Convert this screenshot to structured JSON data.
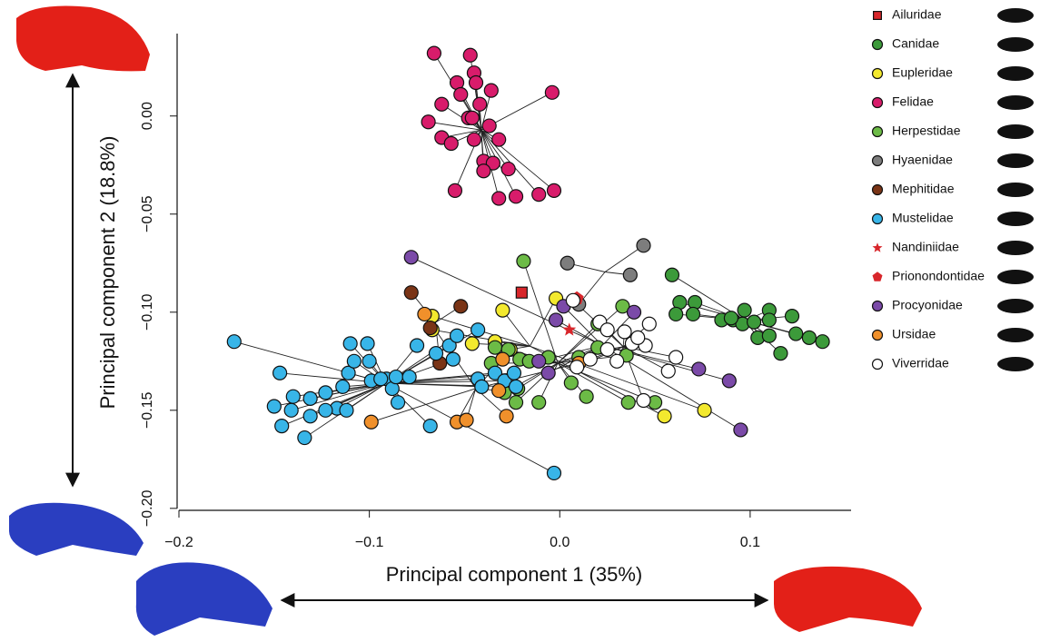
{
  "chart_data": {
    "type": "scatter",
    "xlabel": "Principal component 1 (35%)",
    "ylabel": "Principal component 2 (18.8%)",
    "xlim": [
      -0.2,
      0.153
    ],
    "ylim": [
      -0.201,
      0.042
    ],
    "xticks": [
      {
        "value": -0.2,
        "label": "−0.2"
      },
      {
        "value": -0.1,
        "label": "−0.1"
      },
      {
        "value": 0,
        "label": "0.0"
      },
      {
        "value": 0.1,
        "label": "0.1"
      }
    ],
    "yticks": [
      {
        "value": 0,
        "label": "0.00"
      },
      {
        "value": -0.05,
        "label": "−0.05"
      },
      {
        "value": -0.1,
        "label": "−0.10"
      },
      {
        "value": -0.15,
        "label": "−0.15"
      },
      {
        "value": -0.2,
        "label": "−0.20"
      }
    ],
    "legend": "right",
    "series": [
      {
        "name": "Ailuridae",
        "color": "#d8262b",
        "marker": "square",
        "x": [
          -0.02
        ],
        "y": [
          -0.09
        ]
      },
      {
        "name": "Canidae",
        "color": "#3c9a3a",
        "marker": "circle",
        "x": [
          0.059,
          0.063,
          0.071,
          0.061,
          0.07,
          0.085,
          0.097,
          0.091,
          0.11,
          0.122,
          0.096,
          0.102,
          0.09,
          0.11,
          0.104,
          0.11,
          0.124,
          0.131,
          0.138,
          0.116
        ],
        "y": [
          -0.081,
          -0.095,
          -0.095,
          -0.101,
          -0.101,
          -0.104,
          -0.099,
          -0.104,
          -0.099,
          -0.102,
          -0.106,
          -0.105,
          -0.103,
          -0.104,
          -0.113,
          -0.112,
          -0.111,
          -0.113,
          -0.115,
          -0.121
        ]
      },
      {
        "name": "Eupleridae",
        "color": "#f3e92e",
        "marker": "circle",
        "x": [
          -0.002,
          -0.067,
          -0.067,
          -0.034,
          -0.046,
          -0.03,
          -0.026,
          0.055,
          0.076
        ],
        "y": [
          -0.093,
          -0.102,
          -0.109,
          -0.115,
          -0.116,
          -0.099,
          -0.119,
          -0.153,
          -0.15
        ]
      },
      {
        "name": "Felidae",
        "color": "#d81c6b",
        "marker": "circle",
        "x": [
          -0.066,
          -0.047,
          -0.045,
          -0.054,
          -0.044,
          -0.052,
          -0.036,
          -0.004,
          -0.042,
          -0.062,
          -0.048,
          -0.046,
          -0.069,
          -0.037,
          -0.062,
          -0.057,
          -0.045,
          -0.032,
          -0.04,
          -0.035,
          -0.04,
          -0.027,
          -0.055,
          -0.023,
          -0.032,
          -0.011,
          -0.003
        ],
        "y": [
          0.032,
          0.031,
          0.022,
          0.017,
          0.017,
          0.011,
          0.013,
          0.012,
          0.006,
          0.006,
          -0.001,
          -0.001,
          -0.003,
          -0.005,
          -0.011,
          -0.014,
          -0.012,
          -0.012,
          -0.023,
          -0.024,
          -0.028,
          -0.027,
          -0.038,
          -0.041,
          -0.042,
          -0.04,
          -0.038
        ]
      },
      {
        "name": "Herpestidae",
        "color": "#6cbb46",
        "marker": "circle",
        "x": [
          -0.019,
          0.033,
          0.02,
          -0.034,
          -0.027,
          -0.036,
          -0.021,
          -0.016,
          -0.006,
          0.01,
          0.02,
          0.035,
          -0.022,
          -0.029,
          -0.023,
          -0.011,
          0.006,
          0.014,
          0.036,
          0.05
        ],
        "y": [
          -0.074,
          -0.097,
          -0.106,
          -0.118,
          -0.119,
          -0.126,
          -0.124,
          -0.125,
          -0.123,
          -0.123,
          -0.118,
          -0.122,
          -0.139,
          -0.141,
          -0.146,
          -0.146,
          -0.136,
          -0.143,
          -0.146,
          -0.146
        ]
      },
      {
        "name": "Hyaenidae",
        "color": "#7d7d7d",
        "marker": "circle",
        "x": [
          0.044,
          0.004,
          0.037,
          0.01
        ],
        "y": [
          -0.066,
          -0.075,
          -0.081,
          -0.096
        ]
      },
      {
        "name": "Mephitidae",
        "color": "#7a3416",
        "marker": "circle",
        "x": [
          -0.078,
          -0.052,
          -0.068,
          -0.063
        ],
        "y": [
          -0.09,
          -0.097,
          -0.108,
          -0.126
        ]
      },
      {
        "name": "Mustelidae",
        "color": "#38b5e8",
        "marker": "circle",
        "x": [
          -0.171,
          -0.147,
          -0.15,
          -0.141,
          -0.14,
          -0.146,
          -0.134,
          -0.131,
          -0.123,
          -0.117,
          -0.112,
          -0.114,
          -0.111,
          -0.11,
          -0.101,
          -0.108,
          -0.1,
          -0.099,
          -0.091,
          -0.088,
          -0.086,
          -0.085,
          -0.075,
          -0.065,
          -0.058,
          -0.054,
          -0.056,
          -0.043,
          -0.043,
          -0.041,
          -0.034,
          -0.029,
          -0.024,
          -0.023,
          -0.068,
          -0.003,
          -0.094,
          -0.079,
          -0.123,
          -0.131
        ],
        "y": [
          -0.115,
          -0.131,
          -0.148,
          -0.15,
          -0.143,
          -0.158,
          -0.164,
          -0.144,
          -0.141,
          -0.149,
          -0.15,
          -0.138,
          -0.131,
          -0.116,
          -0.116,
          -0.125,
          -0.125,
          -0.135,
          -0.134,
          -0.139,
          -0.133,
          -0.146,
          -0.117,
          -0.121,
          -0.117,
          -0.112,
          -0.124,
          -0.109,
          -0.134,
          -0.138,
          -0.131,
          -0.135,
          -0.131,
          -0.138,
          -0.158,
          -0.182,
          -0.134,
          -0.133,
          -0.15,
          -0.153
        ]
      },
      {
        "name": "Nandiniidae",
        "color": "#d8262b",
        "marker": "star",
        "x": [
          0.005
        ],
        "y": [
          -0.109
        ]
      },
      {
        "name": "Prionondontidae",
        "color": "#d8262b",
        "marker": "pentagon",
        "x": [
          0.009
        ],
        "y": [
          -0.093
        ]
      },
      {
        "name": "Procyonidae",
        "color": "#7b4aa8",
        "marker": "circle",
        "x": [
          -0.078,
          0.039,
          -0.002,
          -0.011,
          -0.006,
          0.073,
          0.089,
          0.095,
          0.002
        ],
        "y": [
          -0.072,
          -0.1,
          -0.104,
          -0.125,
          -0.131,
          -0.129,
          -0.135,
          -0.16,
          -0.097
        ]
      },
      {
        "name": "Ursidae",
        "color": "#f0902b",
        "marker": "circle",
        "x": [
          -0.099,
          -0.054,
          -0.049,
          -0.03,
          -0.032,
          -0.028,
          0.01,
          -0.071
        ],
        "y": [
          -0.156,
          -0.156,
          -0.155,
          -0.124,
          -0.14,
          -0.153,
          -0.126,
          -0.101
        ]
      },
      {
        "name": "Viverridae",
        "color": "#ffffff",
        "marker": "circle",
        "x": [
          0.007,
          0.021,
          0.025,
          0.034,
          0.047,
          0.038,
          0.045,
          0.041,
          0.025,
          0.016,
          0.03,
          0.009,
          0.057,
          0.061,
          0.044
        ],
        "y": [
          -0.094,
          -0.105,
          -0.109,
          -0.11,
          -0.106,
          -0.116,
          -0.117,
          -0.113,
          -0.119,
          -0.124,
          -0.125,
          -0.128,
          -0.13,
          -0.123,
          -0.145
        ]
      }
    ]
  }
}
